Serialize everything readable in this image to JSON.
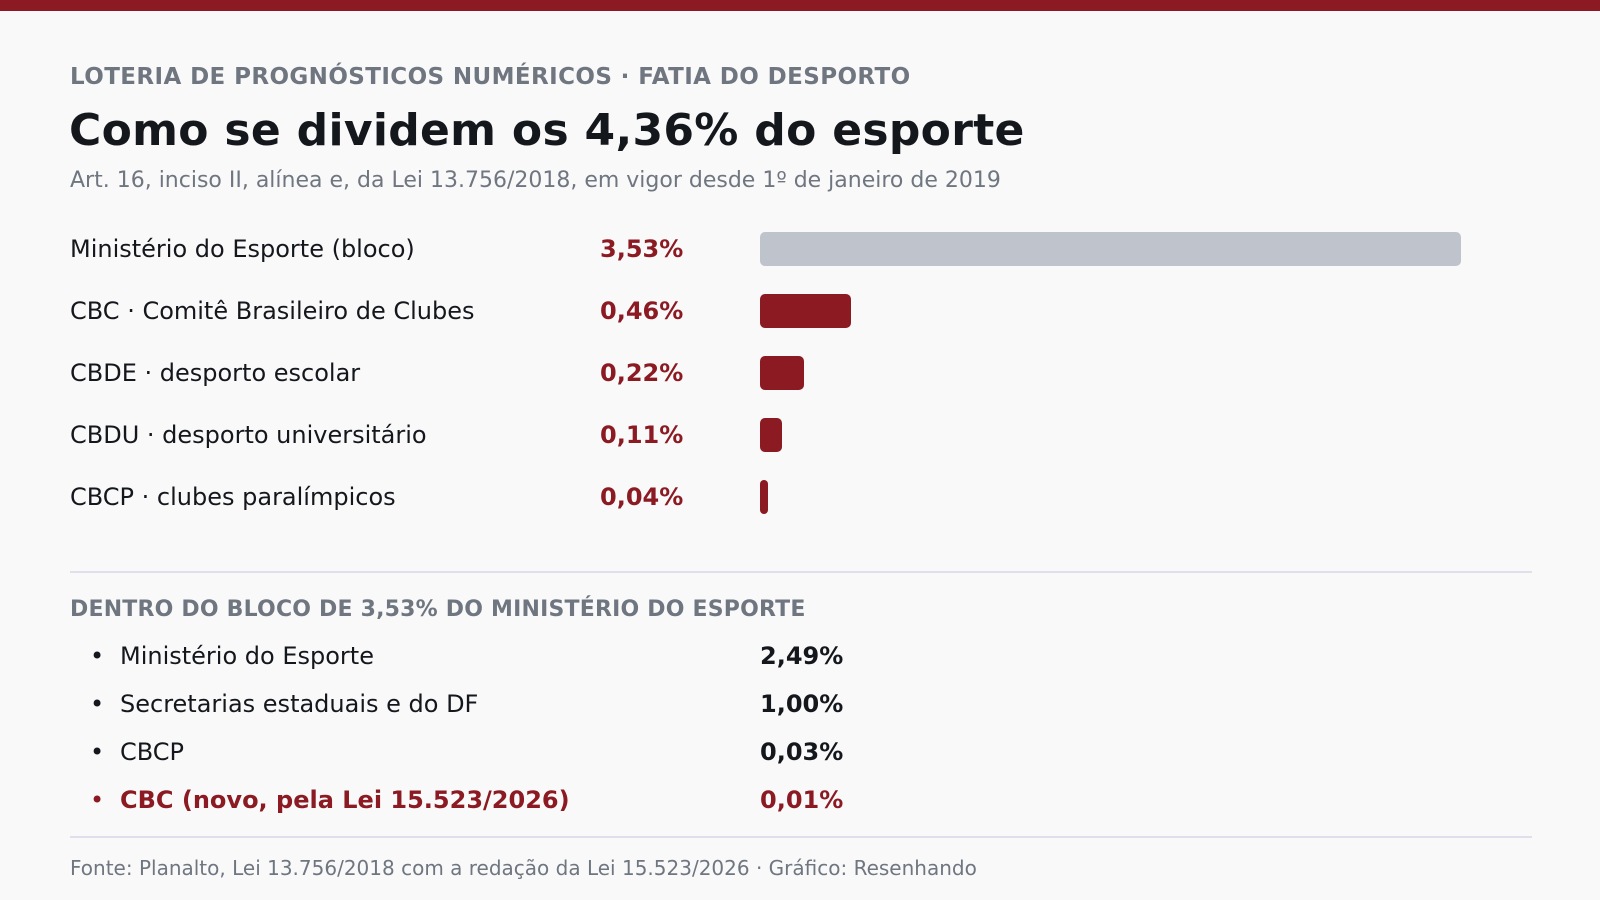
{
  "header": {
    "eyebrow": "LOTERIA DE PROGNÓSTICOS NUMÉRICOS · FATIA DO DESPORTO",
    "title": "Como se dividem os 4,36% do esporte",
    "subtitle": "Art. 16, inciso II, alínea e, da Lei 13.756/2018, em vigor desde 1º de janeiro de 2019"
  },
  "colors": {
    "accent": "#8b1a22",
    "muted_bar": "#bfc4cc",
    "text_dark": "#14171c",
    "text_muted": "#6f7680",
    "background": "#f9f9fa"
  },
  "chart_data": {
    "type": "bar",
    "orientation": "horizontal",
    "title": "Como se dividem os 4,36% do esporte",
    "unit": "%",
    "categories": [
      "Ministério do Esporte (bloco)",
      "CBC · Comitê Brasileiro de Clubes",
      "CBDE · desporto escolar",
      "CBDU · desporto universitário",
      "CBCP · clubes paralímpicos"
    ],
    "values": [
      3.53,
      0.46,
      0.22,
      0.11,
      0.04
    ],
    "value_labels": [
      "3,53%",
      "0,46%",
      "0,22%",
      "0,11%",
      "0,04%"
    ],
    "muted": [
      true,
      false,
      false,
      false,
      false
    ],
    "grid": false,
    "legend": "none"
  },
  "breakdown": {
    "title": "DENTRO DO BLOCO DE 3,53% DO MINISTÉRIO DO ESPORTE",
    "bullet": "•",
    "items": [
      {
        "label": "Ministério do Esporte",
        "value": "2,49%",
        "highlight": false
      },
      {
        "label": "Secretarias estaduais e do DF",
        "value": "1,00%",
        "highlight": false
      },
      {
        "label": "CBCP",
        "value": "0,03%",
        "highlight": false
      },
      {
        "label": "CBC (novo, pela Lei 15.523/2026)",
        "value": "0,01%",
        "highlight": true
      }
    ]
  },
  "footer": {
    "text": "Fonte: Planalto, Lei 13.756/2018 com a redação da Lei 15.523/2026  ·  Gráfico: Resenhando"
  }
}
